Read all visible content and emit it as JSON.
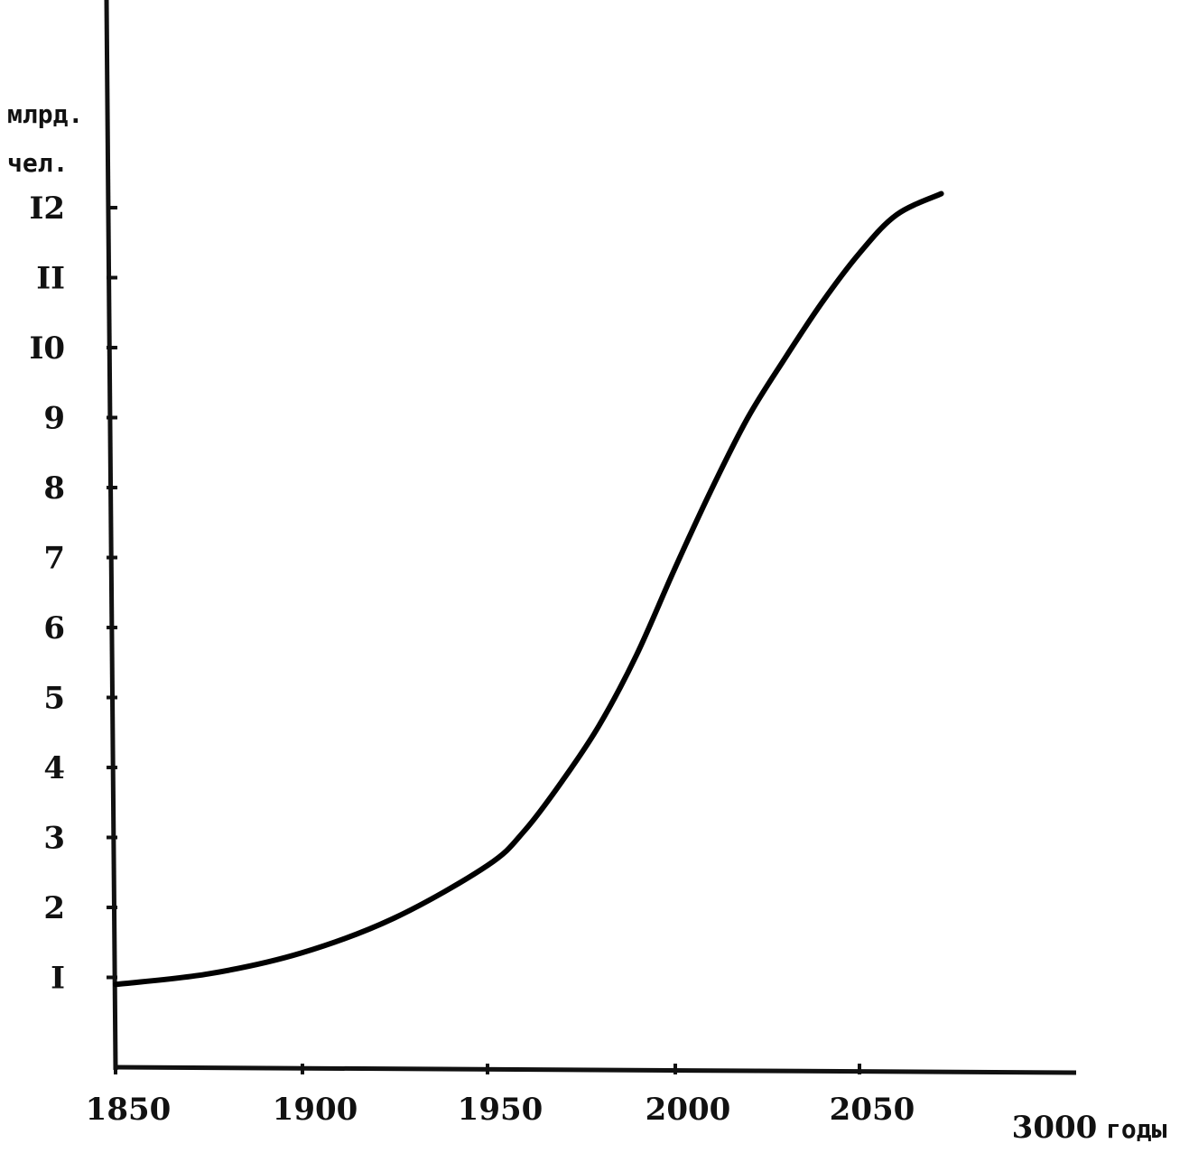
{
  "chart_data": {
    "type": "line",
    "ylabel_line1": "млрд.",
    "ylabel_line2": "чел.",
    "xlabel": "годы",
    "y_ticks": [
      "I",
      "2",
      "3",
      "4",
      "5",
      "6",
      "7",
      "8",
      "9",
      "I0",
      "II",
      "I2"
    ],
    "y_tick_values": [
      1,
      2,
      3,
      4,
      5,
      6,
      7,
      8,
      9,
      10,
      11,
      12
    ],
    "x_ticks": [
      "1850",
      "1900",
      "1950",
      "2000",
      "2050",
      "3000"
    ],
    "ylim": [
      0,
      12.8
    ],
    "series": [
      {
        "x": [
          1850,
          1875,
          1900,
          1925,
          1950,
          1960,
          1970,
          1980,
          1990,
          2000,
          2010,
          2020,
          2030,
          2040,
          2050,
          2060,
          2072
        ],
        "values": [
          0.9,
          1.05,
          1.35,
          1.85,
          2.6,
          3.1,
          3.8,
          4.6,
          5.6,
          6.8,
          7.95,
          9.0,
          9.85,
          10.65,
          11.35,
          11.9,
          12.2
        ]
      }
    ]
  }
}
